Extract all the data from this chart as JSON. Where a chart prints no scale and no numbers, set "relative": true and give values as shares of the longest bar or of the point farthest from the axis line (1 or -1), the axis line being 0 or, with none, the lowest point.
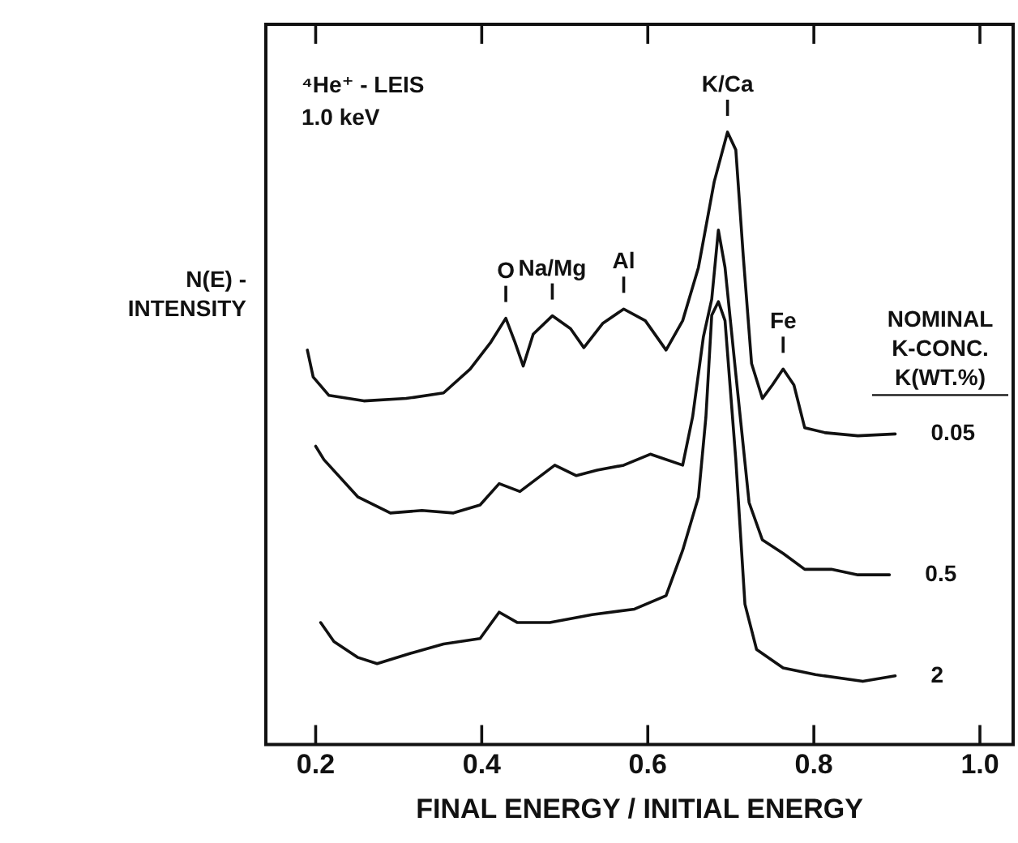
{
  "chart_data": {
    "type": "line",
    "relative": true,
    "xlabel": "FINAL ENERGY / INITIAL ENERGY",
    "ylabel": "N(E) - INTENSITY",
    "legend_title": "NOMINAL K-CONC. K(WT.%)",
    "legend": false,
    "grid": false,
    "marker": "none",
    "line_style": "solid",
    "tick_labels": "x",
    "xlim": [
      0.14,
      1.04
    ],
    "xticks": [
      0.2,
      0.4,
      0.6,
      0.8,
      {
        "value": 1.0,
        "label": "1.0"
      }
    ],
    "annotations": [
      "⁴He⁺ - LEIS",
      "1.0 keV",
      {
        "text": "O",
        "x": 0.429,
        "y": 0.696
      },
      {
        "text": "Na/Mg",
        "x": 0.485,
        "y": 0.7
      },
      {
        "text": "Al",
        "x": 0.571,
        "y": 0.711
      },
      {
        "text": "K/Ca",
        "x": 0.696,
        "y": 1.0
      },
      {
        "text": "Fe",
        "x": 0.763,
        "y": 0.613
      }
    ],
    "series": [
      {
        "name": "0.05",
        "color": "#111111",
        "x": [
          0.19,
          0.197,
          0.216,
          0.258,
          0.309,
          0.354,
          0.386,
          0.411,
          0.429,
          0.44,
          0.45,
          0.462,
          0.485,
          0.507,
          0.523,
          0.546,
          0.571,
          0.597,
          0.622,
          0.642,
          0.661,
          0.68,
          0.696,
          0.706,
          0.715,
          0.725,
          0.738,
          0.75,
          0.763,
          0.776,
          0.789,
          0.814,
          0.853,
          0.898
        ],
        "values": [
          0.644,
          0.6,
          0.57,
          0.561,
          0.565,
          0.574,
          0.613,
          0.657,
          0.696,
          0.657,
          0.618,
          0.67,
          0.7,
          0.679,
          0.648,
          0.688,
          0.711,
          0.692,
          0.644,
          0.692,
          0.779,
          0.919,
          1.0,
          0.971,
          0.797,
          0.622,
          0.565,
          0.587,
          0.613,
          0.587,
          0.517,
          0.509,
          0.504,
          0.507
        ]
      },
      {
        "name": "0.5",
        "color": "#111111",
        "x": [
          0.2,
          0.21,
          0.251,
          0.29,
          0.328,
          0.366,
          0.398,
          0.421,
          0.446,
          0.488,
          0.514,
          0.539,
          0.571,
          0.603,
          0.642,
          0.654,
          0.667,
          0.677,
          0.685,
          0.693,
          0.706,
          0.722,
          0.738,
          0.763,
          0.789,
          0.821,
          0.853,
          0.891
        ],
        "values": [
          0.487,
          0.465,
          0.404,
          0.378,
          0.382,
          0.378,
          0.391,
          0.426,
          0.413,
          0.456,
          0.439,
          0.448,
          0.456,
          0.474,
          0.456,
          0.535,
          0.666,
          0.727,
          0.84,
          0.779,
          0.605,
          0.395,
          0.334,
          0.312,
          0.286,
          0.286,
          0.277,
          0.277
        ]
      },
      {
        "name": "2",
        "color": "#111111",
        "x": [
          0.206,
          0.222,
          0.251,
          0.274,
          0.315,
          0.354,
          0.398,
          0.421,
          0.443,
          0.482,
          0.533,
          0.584,
          0.622,
          0.642,
          0.661,
          0.67,
          0.677,
          0.685,
          0.693,
          0.706,
          0.717,
          0.731,
          0.763,
          0.802,
          0.859,
          0.898
        ],
        "values": [
          0.199,
          0.168,
          0.142,
          0.132,
          0.149,
          0.164,
          0.173,
          0.216,
          0.199,
          0.199,
          0.212,
          0.221,
          0.243,
          0.317,
          0.404,
          0.535,
          0.701,
          0.723,
          0.692,
          0.465,
          0.229,
          0.155,
          0.125,
          0.114,
          0.103,
          0.112
        ]
      }
    ]
  }
}
